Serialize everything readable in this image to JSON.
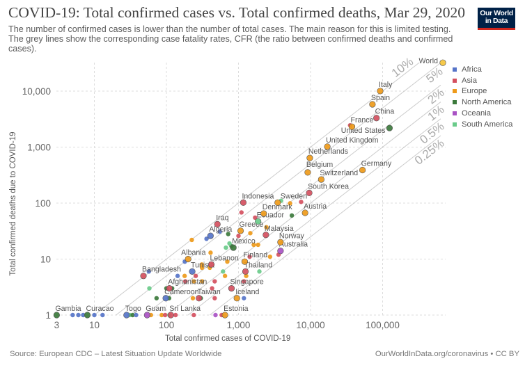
{
  "header": {
    "title": "COVID-19: Total confirmed cases vs. Total confirmed deaths, Mar 29, 2020",
    "subtitle": "The number of confirmed cases is lower than the number of total cases. The main reason for this is limited testing.  The grey lines show the corresponding case fatality rates, CFR (the ratio between confirmed deaths and confirmed cases).",
    "logo_line1": "Our World",
    "logo_line2": "in Data"
  },
  "footer": {
    "source": "Source: European CDC – Latest Situation Update Worldwide",
    "license": "OurWorldInData.org/coronavirus • CC BY"
  },
  "colors": {
    "Africa": "#5674c8",
    "Asia": "#d4505f",
    "Europe": "#ee9a1a",
    "North America": "#3c7a3c",
    "Oceania": "#a952c4",
    "South America": "#6acb8a",
    "World": "#f5c43b"
  },
  "chart_data": {
    "type": "scatter",
    "title": "COVID-19: Total confirmed cases vs. Total confirmed deaths, Mar 29, 2020",
    "xlabel": "Total confirmed cases of COVID-19",
    "ylabel": "Total confirmed deaths due to COVID-19",
    "x_scale": "log",
    "y_scale": "log",
    "xlim": [
      3,
      700000
    ],
    "ylim": [
      1,
      35000
    ],
    "x_ticks": [
      "3",
      "10",
      "100",
      "1,000",
      "10,000",
      "100,000"
    ],
    "x_tick_values": [
      3,
      10,
      100,
      1000,
      10000,
      100000
    ],
    "y_ticks": [
      "1",
      "10",
      "100",
      "1,000",
      "10,000"
    ],
    "y_tick_values": [
      1,
      10,
      100,
      1000,
      10000
    ],
    "grid": true,
    "legend": {
      "placement": "right",
      "entries": [
        "Africa",
        "Asia",
        "Europe",
        "North America",
        "Oceania",
        "South America"
      ]
    },
    "cfr_lines": [
      {
        "label": "10%",
        "rate": 0.1
      },
      {
        "label": "5%",
        "rate": 0.05
      },
      {
        "label": "2%",
        "rate": 0.02
      },
      {
        "label": "1%",
        "rate": 0.01
      },
      {
        "label": "0.5%",
        "rate": 0.005
      },
      {
        "label": "0.25%",
        "rate": 0.0025
      }
    ],
    "points": [
      {
        "continent": "Africa",
        "cases": 5,
        "deaths": 1
      },
      {
        "continent": "Africa",
        "cases": 6,
        "deaths": 1
      },
      {
        "continent": "Africa",
        "cases": 7,
        "deaths": 1
      },
      {
        "continent": "Africa",
        "cases": 10,
        "deaths": 1
      },
      {
        "continent": "Africa",
        "cases": 13,
        "deaths": 1
      },
      {
        "continent": "South America",
        "cases": 31,
        "deaths": 1
      },
      {
        "continent": "North America",
        "cases": 34,
        "deaths": 1
      },
      {
        "continent": "Africa",
        "cases": 38,
        "deaths": 1
      },
      {
        "continent": "Europe",
        "cases": 61,
        "deaths": 1
      },
      {
        "continent": "Europe",
        "cases": 86,
        "deaths": 1
      },
      {
        "continent": "Asia",
        "cases": 96,
        "deaths": 1
      },
      {
        "continent": "South America",
        "cases": 110,
        "deaths": 1
      },
      {
        "continent": "Asia",
        "cases": 134,
        "deaths": 1
      },
      {
        "continent": "Asia",
        "cases": 240,
        "deaths": 1
      },
      {
        "continent": "Oceania",
        "cases": 480,
        "deaths": 1
      },
      {
        "continent": "Asia",
        "cases": 585,
        "deaths": 1
      },
      {
        "continent": "North America",
        "cases": 73,
        "deaths": 2
      },
      {
        "continent": "North America",
        "cases": 109,
        "deaths": 2
      },
      {
        "continent": "Europe",
        "cases": 233,
        "deaths": 2
      },
      {
        "continent": "North America",
        "cases": 300,
        "deaths": 2
      },
      {
        "continent": "Asia",
        "cases": 468,
        "deaths": 2
      },
      {
        "continent": "Africa",
        "cases": 1190,
        "deaths": 2
      },
      {
        "continent": "South America",
        "cases": 58,
        "deaths": 3
      },
      {
        "continent": "North America",
        "cases": 100,
        "deaths": 3
      },
      {
        "continent": "North America",
        "cases": 120,
        "deaths": 3
      },
      {
        "continent": "Asia",
        "cases": 430,
        "deaths": 3
      },
      {
        "continent": "Asia",
        "cases": 183,
        "deaths": 4
      },
      {
        "continent": "Europe",
        "cases": 240,
        "deaths": 4
      },
      {
        "continent": "Europe",
        "cases": 312,
        "deaths": 4
      },
      {
        "continent": "Asia",
        "cases": 468,
        "deaths": 4
      },
      {
        "continent": "Asia",
        "cases": 1190,
        "deaths": 4
      },
      {
        "continent": "Africa",
        "cases": 143,
        "deaths": 5
      },
      {
        "continent": "Europe",
        "cases": 179,
        "deaths": 5
      },
      {
        "continent": "Asia",
        "cases": 255,
        "deaths": 5
      },
      {
        "continent": "Europe",
        "cases": 650,
        "deaths": 5
      },
      {
        "continent": "Europe",
        "cases": 1280,
        "deaths": 5
      },
      {
        "continent": "Africa",
        "cases": 57,
        "deaths": 6
      },
      {
        "continent": "South America",
        "cases": 610,
        "deaths": 6
      },
      {
        "continent": "South America",
        "cases": 1950,
        "deaths": 6
      },
      {
        "continent": "Europe",
        "cases": 312,
        "deaths": 7
      },
      {
        "continent": "Europe",
        "cases": 400,
        "deaths": 7
      },
      {
        "continent": "Europe",
        "cases": 310,
        "deaths": 8
      },
      {
        "continent": "Europe",
        "cases": 700,
        "deaths": 9
      },
      {
        "continent": "Africa",
        "cases": 180,
        "deaths": 9
      },
      {
        "continent": "Europe",
        "cases": 2740,
        "deaths": 11
      },
      {
        "continent": "Asia",
        "cases": 1430,
        "deaths": 11
      },
      {
        "continent": "Asia",
        "cases": 3600,
        "deaths": 12
      },
      {
        "continent": "Europe",
        "cases": 410,
        "deaths": 13
      },
      {
        "continent": "South America",
        "cases": 670,
        "deaths": 16
      },
      {
        "continent": "North America",
        "cases": 800,
        "deaths": 17
      },
      {
        "continent": "Europe",
        "cases": 1630,
        "deaths": 18
      },
      {
        "continent": "Europe",
        "cases": 1870,
        "deaths": 18
      },
      {
        "continent": "South America",
        "cases": 750,
        "deaths": 19
      },
      {
        "continent": "Europe",
        "cases": 225,
        "deaths": 22
      },
      {
        "continent": "Africa",
        "cases": 360,
        "deaths": 23
      },
      {
        "continent": "Asia",
        "cases": 1000,
        "deaths": 26
      },
      {
        "continent": "North America",
        "cases": 720,
        "deaths": 28
      },
      {
        "continent": "Europe",
        "cases": 1460,
        "deaths": 29
      },
      {
        "continent": "Africa",
        "cases": 550,
        "deaths": 31
      },
      {
        "continent": "Europe",
        "cases": 2440,
        "deaths": 37
      },
      {
        "continent": "Asia",
        "cases": 1700,
        "deaths": 55
      },
      {
        "continent": "North America",
        "cases": 5500,
        "deaths": 60
      },
      {
        "continent": "Asia",
        "cases": 1100,
        "deaths": 68
      },
      {
        "continent": "Europe",
        "cases": 5200,
        "deaths": 99
      },
      {
        "continent": "South America",
        "cases": 3900,
        "deaths": 110
      },
      {
        "continent": "Asia",
        "cases": 7400,
        "deaths": 105
      },
      {
        "continent": "Asia",
        "cases": 35400,
        "deaths": 2450
      },
      {
        "label": "Gambia",
        "continent": "North America",
        "cases": 3,
        "deaths": 1
      },
      {
        "label": "Curacao",
        "continent": "North America",
        "cases": 8,
        "deaths": 1
      },
      {
        "label": "Togo",
        "continent": "Africa",
        "cases": 28,
        "deaths": 1
      },
      {
        "label": "Guam",
        "continent": "Oceania",
        "cases": 54,
        "deaths": 1
      },
      {
        "label": "Sri Lanka",
        "continent": "Asia",
        "cases": 115,
        "deaths": 1
      },
      {
        "label": "Estonia",
        "continent": "Europe",
        "cases": 650,
        "deaths": 1
      },
      {
        "label": "Cameroon",
        "continent": "Africa",
        "cases": 98,
        "deaths": 2
      },
      {
        "label": "Taiwan",
        "continent": "Asia",
        "cases": 283,
        "deaths": 2
      },
      {
        "label": "Iceland",
        "continent": "Europe",
        "cases": 950,
        "deaths": 2
      },
      {
        "label": "Afghanistan",
        "continent": "Asia",
        "cases": 110,
        "deaths": 3
      },
      {
        "label": "Singapore",
        "continent": "Asia",
        "cases": 800,
        "deaths": 3
      },
      {
        "label": "Bangladesh",
        "continent": "Asia",
        "cases": 48,
        "deaths": 5
      },
      {
        "label": "Tunisia",
        "continent": "Africa",
        "cases": 228,
        "deaths": 6
      },
      {
        "label": "Thailand",
        "continent": "Asia",
        "cases": 1250,
        "deaths": 6
      },
      {
        "label": "Lebanon",
        "continent": "Asia",
        "cases": 420,
        "deaths": 8
      },
      {
        "label": "Finland",
        "continent": "Europe",
        "cases": 1220,
        "deaths": 9
      },
      {
        "label": "Albania",
        "continent": "Europe",
        "cases": 200,
        "deaths": 10
      },
      {
        "label": "Australia",
        "continent": "Oceania",
        "cases": 3830,
        "deaths": 14
      },
      {
        "label": "Mexico",
        "continent": "North America",
        "cases": 850,
        "deaths": 16
      },
      {
        "label": "Norway",
        "continent": "Europe",
        "cases": 3830,
        "deaths": 20
      },
      {
        "label": "Algeria",
        "continent": "Africa",
        "cases": 409,
        "deaths": 26
      },
      {
        "label": "Malaysia",
        "continent": "Asia",
        "cases": 2400,
        "deaths": 27
      },
      {
        "label": "Greece",
        "continent": "Europe",
        "cases": 1070,
        "deaths": 32
      },
      {
        "label": "Iraq",
        "continent": "Asia",
        "cases": 510,
        "deaths": 42
      },
      {
        "label": "Ecuador",
        "continent": "South America",
        "cases": 1870,
        "deaths": 47
      },
      {
        "label": "Denmark",
        "continent": "Europe",
        "cases": 2240,
        "deaths": 65
      },
      {
        "label": "Austria",
        "continent": "Europe",
        "cases": 8400,
        "deaths": 67
      },
      {
        "label": "Indonesia",
        "continent": "Asia",
        "cases": 1167,
        "deaths": 102
      },
      {
        "label": "Sweden",
        "continent": "Europe",
        "cases": 3500,
        "deaths": 102
      },
      {
        "label": "South Korea",
        "continent": "Asia",
        "cases": 9583,
        "deaths": 152
      },
      {
        "label": "Switzerland",
        "continent": "Europe",
        "cases": 14076,
        "deaths": 264
      },
      {
        "label": "Belgium",
        "continent": "Europe",
        "cases": 9134,
        "deaths": 353
      },
      {
        "label": "Germany",
        "continent": "Europe",
        "cases": 52547,
        "deaths": 389
      },
      {
        "label": "Netherlands",
        "continent": "Europe",
        "cases": 9762,
        "deaths": 639
      },
      {
        "label": "United Kingdom",
        "continent": "Europe",
        "cases": 17089,
        "deaths": 1019
      },
      {
        "label": "United States",
        "continent": "North America",
        "cases": 124665,
        "deaths": 2191
      },
      {
        "label": "France",
        "continent": "Europe",
        "cases": 37575,
        "deaths": 2314
      },
      {
        "label": "China",
        "continent": "Asia",
        "cases": 82122,
        "deaths": 3304
      },
      {
        "label": "Spain",
        "continent": "Europe",
        "cases": 72248,
        "deaths": 5812
      },
      {
        "label": "Italy",
        "continent": "Europe",
        "cases": 92472,
        "deaths": 10023
      },
      {
        "label": "World",
        "continent": "World",
        "cases": 685000,
        "deaths": 32137
      }
    ]
  }
}
